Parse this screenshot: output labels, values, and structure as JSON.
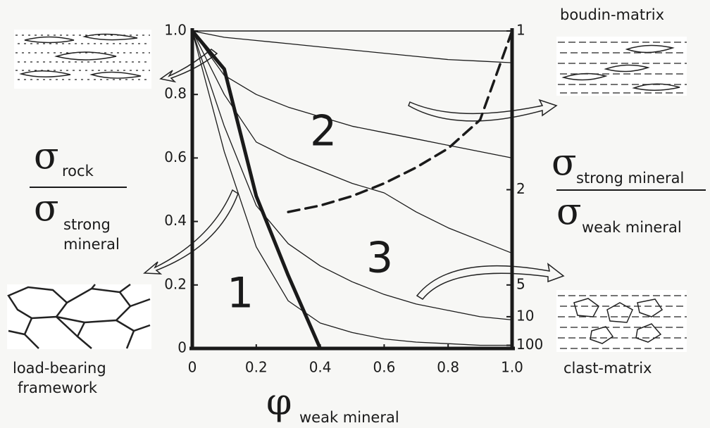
{
  "chart_data": {
    "type": "line",
    "x": [
      0,
      0.1,
      0.2,
      0.3,
      0.4,
      0.5,
      0.6,
      0.7,
      0.8,
      0.9,
      1.0
    ],
    "series": [
      {
        "color": "#1a1a1a",
        "style": "thin",
        "values": [
          1,
          0.98,
          0.97,
          0.96,
          0.95,
          0.94,
          0.93,
          0.92,
          0.91,
          0.905,
          0.9
        ]
      },
      {
        "color": "#1a1a1a",
        "style": "thin",
        "values": [
          1,
          0.86,
          0.8,
          0.76,
          0.73,
          0.7,
          0.68,
          0.66,
          0.64,
          0.62,
          0.6
        ]
      },
      {
        "color": "#1a1a1a",
        "style": "thin",
        "values": [
          1,
          0.8,
          0.65,
          0.6,
          0.56,
          0.52,
          0.49,
          0.43,
          0.38,
          0.34,
          0.3
        ]
      },
      {
        "color": "#1a1a1a",
        "style": "thin",
        "values": [
          1,
          0.7,
          0.45,
          0.33,
          0.26,
          0.21,
          0.17,
          0.14,
          0.12,
          0.1,
          0.09
        ]
      },
      {
        "color": "#1a1a1a",
        "style": "thin",
        "values": [
          1,
          0.62,
          0.32,
          0.15,
          0.08,
          0.05,
          0.03,
          0.02,
          0.015,
          0.01,
          0.01
        ]
      },
      {
        "color": "#1a1a1a",
        "style": "thick",
        "values": [
          1,
          0.88,
          0.48,
          0.23,
          0,
          null,
          null,
          null,
          null,
          null,
          null
        ]
      },
      {
        "color": "#1a1a1a",
        "style": "dashed",
        "values": [
          null,
          null,
          null,
          0.43,
          0.45,
          0.48,
          0.52,
          0.57,
          0.63,
          0.72,
          1.0
        ]
      }
    ],
    "xlim": [
      0,
      1
    ],
    "ylim": [
      0,
      1
    ],
    "xticks": [
      0,
      0.2,
      0.4,
      0.6,
      0.8,
      {
        "value": 1,
        "label": "1.0"
      }
    ],
    "yticks": [
      0,
      0.2,
      0.4,
      0.6,
      0.8,
      {
        "value": 1,
        "label": "1.0"
      }
    ],
    "y2scale": "reciprocal",
    "y2ticks": [
      1,
      2,
      5,
      10,
      100
    ],
    "xlabel": {
      "symbol": "φ",
      "subscript": "weak mineral"
    },
    "ylabel": {
      "symbol": "σ",
      "numerator": "rock",
      "denominator": [
        "strong",
        "mineral"
      ]
    },
    "y2label": {
      "symbol": "σ",
      "numerator": "strong mineral",
      "denominator": "weak mineral"
    },
    "regions": [
      "1",
      "2",
      "3"
    ],
    "sketches": {
      "top_right": "boudin-matrix",
      "bottom_left": [
        "load-bearing",
        "framework"
      ],
      "bottom_right": "clast-matrix"
    }
  }
}
